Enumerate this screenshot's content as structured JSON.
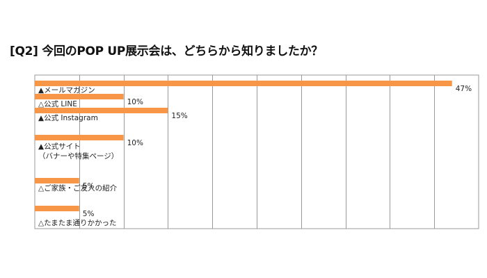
{
  "chart_data": {
    "type": "bar",
    "orientation": "horizontal",
    "title": "[Q2] 今回のPOP UP展示会は、どちらから知りましたか？",
    "categories": [
      [
        "▲メールマガジン"
      ],
      [
        "△公式 LINE"
      ],
      [
        "▲公式 Instagram"
      ],
      [
        "▲公式サイト",
        "（バナーや特集ページ）"
      ],
      [
        "△ご家族・ご友人の紹介"
      ],
      [
        "△たまたま通りかかった"
      ]
    ],
    "values": [
      47,
      10,
      15,
      10,
      5,
      5
    ],
    "value_labels": [
      "47%",
      "10%",
      "15%",
      "10%",
      "5%",
      "5%"
    ],
    "xlim": [
      0,
      50
    ],
    "grid": true,
    "bar_color": "#F79646",
    "grid_color": "#9A9A9A"
  }
}
